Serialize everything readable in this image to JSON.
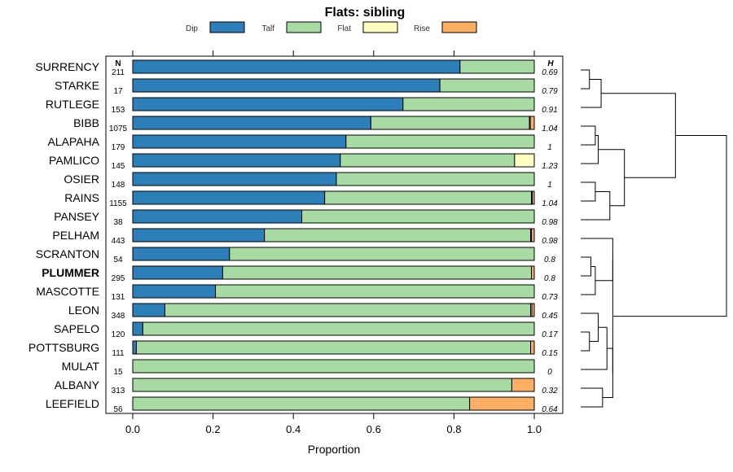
{
  "chart_data": {
    "type": "bar",
    "orientation": "horizontal",
    "stacked": true,
    "title": "Flats: sibling",
    "xlabel": "Proportion",
    "xlim": [
      0,
      1
    ],
    "xticks": [
      "0.0",
      "0.2",
      "0.4",
      "0.6",
      "0.8",
      "1.0"
    ],
    "n_header": "N",
    "h_header": "H",
    "highlight": "PLUMMER",
    "series": [
      {
        "name": "Dip",
        "color": "#2c7fb8"
      },
      {
        "name": "Talf",
        "color": "#a8dba4"
      },
      {
        "name": "Flat",
        "color": "#ffffc0"
      },
      {
        "name": "Rise",
        "color": "#fdae61"
      }
    ],
    "rows": [
      {
        "label": "SURRENCY",
        "n": "211",
        "h": "0.69",
        "values": [
          0.815,
          0.185,
          0,
          0
        ]
      },
      {
        "label": "STARKE",
        "n": "17",
        "h": "0.79",
        "values": [
          0.765,
          0.235,
          0,
          0
        ]
      },
      {
        "label": "RUTLEGE",
        "n": "153",
        "h": "0.91",
        "values": [
          0.673,
          0.327,
          0,
          0
        ]
      },
      {
        "label": "BIBB",
        "n": "1075",
        "h": "1.04",
        "values": [
          0.593,
          0.395,
          0.002,
          0.01
        ]
      },
      {
        "label": "ALAPAHA",
        "n": "179",
        "h": "1",
        "values": [
          0.531,
          0.469,
          0,
          0
        ]
      },
      {
        "label": "PAMLICO",
        "n": "145",
        "h": "1.23",
        "values": [
          0.517,
          0.434,
          0.049,
          0
        ]
      },
      {
        "label": "OSIER",
        "n": "148",
        "h": "1",
        "values": [
          0.507,
          0.493,
          0,
          0
        ]
      },
      {
        "label": "RAINS",
        "n": "1155",
        "h": "1.04",
        "values": [
          0.478,
          0.515,
          0.002,
          0.005
        ]
      },
      {
        "label": "PANSEY",
        "n": "38",
        "h": "0.98",
        "values": [
          0.421,
          0.579,
          0,
          0
        ]
      },
      {
        "label": "PELHAM",
        "n": "443",
        "h": "0.98",
        "values": [
          0.328,
          0.663,
          0.002,
          0.007
        ]
      },
      {
        "label": "SCRANTON",
        "n": "54",
        "h": "0.8",
        "values": [
          0.241,
          0.759,
          0,
          0
        ]
      },
      {
        "label": "PLUMMER",
        "n": "295",
        "h": "0.8",
        "values": [
          0.224,
          0.769,
          0,
          0.007
        ]
      },
      {
        "label": "MASCOTTE",
        "n": "131",
        "h": "0.73",
        "values": [
          0.206,
          0.794,
          0,
          0
        ]
      },
      {
        "label": "LEON",
        "n": "348",
        "h": "0.45",
        "values": [
          0.08,
          0.911,
          0.003,
          0.006
        ]
      },
      {
        "label": "SAPELO",
        "n": "120",
        "h": "0.17",
        "values": [
          0.025,
          0.975,
          0,
          0
        ]
      },
      {
        "label": "POTTSBURG",
        "n": "111",
        "h": "0.15",
        "values": [
          0.009,
          0.982,
          0,
          0.009
        ]
      },
      {
        "label": "MULAT",
        "n": "15",
        "h": "0",
        "values": [
          0,
          1,
          0,
          0
        ]
      },
      {
        "label": "ALBANY",
        "n": "313",
        "h": "0.32",
        "values": [
          0,
          0.944,
          0,
          0.056
        ]
      },
      {
        "label": "LEEFIELD",
        "n": "56",
        "h": "0.64",
        "values": [
          0,
          0.839,
          0,
          0.161
        ]
      }
    ],
    "dendrogram": {
      "merges": [
        [
          0,
          1,
          0.06
        ],
        [
          19,
          2,
          0.14
        ],
        [
          3,
          4,
          0.1
        ],
        [
          5,
          21,
          0.12
        ],
        [
          6,
          7,
          0.1
        ],
        [
          23,
          8,
          0.2
        ],
        [
          22,
          24,
          0.3
        ],
        [
          20,
          25,
          0.65
        ],
        [
          10,
          11,
          0.07
        ],
        [
          27,
          12,
          0.1
        ],
        [
          9,
          28,
          0.22
        ],
        [
          14,
          15,
          0.06
        ],
        [
          30,
          13,
          0.12
        ],
        [
          31,
          16,
          0.18
        ],
        [
          17,
          18,
          0.15
        ],
        [
          32,
          33,
          0.22
        ],
        [
          29,
          34,
          0.22
        ],
        [
          26,
          35,
          1.0
        ]
      ],
      "max_height": 1.0
    }
  }
}
